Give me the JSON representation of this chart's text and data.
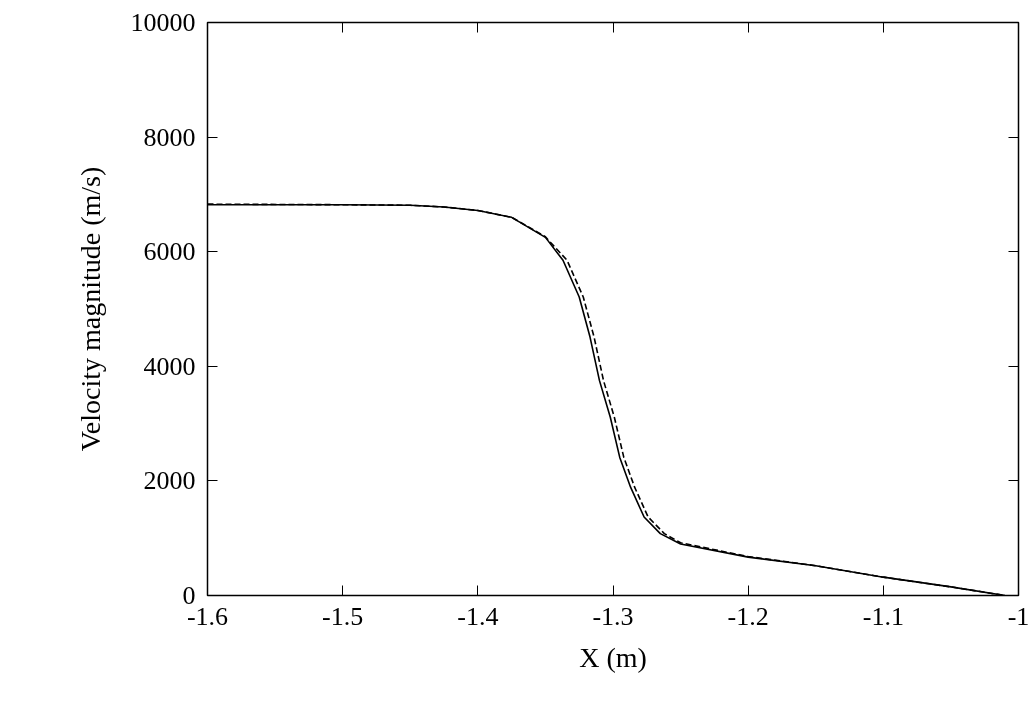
{
  "chart_data": {
    "type": "line",
    "xlabel": "X (m)",
    "ylabel": "Velocity magnitude (m/s)",
    "xlim": [
      -1.6,
      -1.0
    ],
    "xticks": [
      -1.6,
      -1.5,
      -1.4,
      -1.3,
      -1.2,
      -1.1,
      -1.0
    ],
    "ylim": [
      0,
      10000
    ],
    "yticks": [
      0,
      2000,
      4000,
      6000,
      8000,
      10000
    ],
    "grid": false,
    "series": [
      {
        "color": "#000000",
        "line_style": "solid",
        "x": [
          -1.6,
          -1.5,
          -1.45,
          -1.425,
          -1.4,
          -1.375,
          -1.35,
          -1.337,
          -1.325,
          -1.317,
          -1.31,
          -1.302,
          -1.295,
          -1.287,
          -1.277,
          -1.265,
          -1.25,
          -1.2,
          -1.15,
          -1.1,
          -1.05,
          -1.01
        ],
        "values": [
          6820,
          6820,
          6810,
          6780,
          6720,
          6600,
          6250,
          5850,
          5210,
          4510,
          3750,
          3110,
          2410,
          1890,
          1370,
          1080,
          900,
          670,
          520,
          320,
          150,
          0
        ]
      },
      {
        "color": "#000000",
        "line_style": "dashed",
        "x": [
          -1.6,
          -1.5,
          -1.45,
          -1.425,
          -1.4,
          -1.375,
          -1.35,
          -1.334,
          -1.322,
          -1.314,
          -1.307,
          -1.299,
          -1.292,
          -1.284,
          -1.274,
          -1.262,
          -1.25,
          -1.2,
          -1.15,
          -1.1,
          -1.05,
          -1.01
        ],
        "values": [
          6830,
          6820,
          6810,
          6780,
          6720,
          6600,
          6260,
          5850,
          5210,
          4510,
          3750,
          3110,
          2410,
          1890,
          1370,
          1080,
          920,
          680,
          520,
          320,
          150,
          0
        ]
      }
    ]
  }
}
